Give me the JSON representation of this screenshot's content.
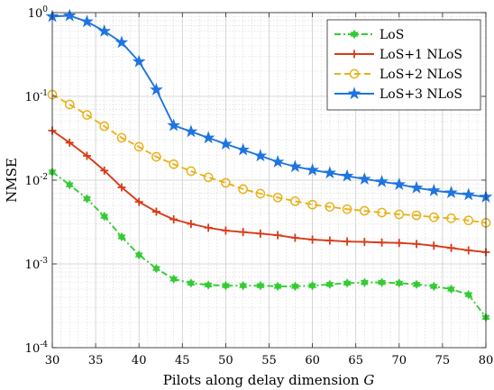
{
  "chart_data": {
    "type": "line",
    "xlabel": "Pilots along delay dimension",
    "xlabel_symbol": "G",
    "ylabel": "NMSE",
    "yscale": "log",
    "xlim": [
      30,
      80
    ],
    "ylim": [
      0.0001,
      1
    ],
    "grid": true,
    "minor_grid": true,
    "legend_position": "top-right",
    "x_ticks": [
      30,
      35,
      40,
      45,
      50,
      55,
      60,
      65,
      70,
      75,
      80
    ],
    "x_tick_labels": [
      "30",
      "35",
      "40",
      "45",
      "50",
      "55",
      "60",
      "65",
      "70",
      "75",
      "80"
    ],
    "y_ticks": [
      0.0001,
      0.001,
      0.01,
      0.1,
      1
    ],
    "y_tick_labels": [
      {
        "base": "10",
        "exp": "-4"
      },
      {
        "base": "10",
        "exp": "-3"
      },
      {
        "base": "10",
        "exp": "-2"
      },
      {
        "base": "10",
        "exp": "-1"
      },
      {
        "base": "10",
        "exp": "0"
      }
    ],
    "x": [
      30,
      32,
      34,
      36,
      38,
      40,
      42,
      44,
      46,
      48,
      50,
      52,
      54,
      56,
      58,
      60,
      62,
      64,
      66,
      68,
      70,
      72,
      74,
      76,
      78,
      80
    ],
    "series": [
      {
        "name": "LoS",
        "color": "#33cc33",
        "marker": "hexagram",
        "dash": "dashdot",
        "values": [
          0.0125,
          0.0088,
          0.006,
          0.0037,
          0.0021,
          0.00128,
          0.00088,
          0.00066,
          0.00059,
          0.00056,
          0.00055,
          0.00055,
          0.00055,
          0.00054,
          0.00054,
          0.00055,
          0.00057,
          0.00059,
          0.0006,
          0.0006,
          0.00059,
          0.00057,
          0.00054,
          0.0005,
          0.00043,
          0.00023
        ]
      },
      {
        "name": "LoS+1 NLoS",
        "color": "#d83a17",
        "marker": "plus",
        "dash": "solid",
        "values": [
          0.039,
          0.028,
          0.0195,
          0.013,
          0.0082,
          0.0055,
          0.0042,
          0.0034,
          0.003,
          0.0027,
          0.0025,
          0.0024,
          0.0023,
          0.0022,
          0.00205,
          0.00195,
          0.0019,
          0.00185,
          0.00183,
          0.0018,
          0.00178,
          0.00173,
          0.00165,
          0.00155,
          0.00145,
          0.00138
        ]
      },
      {
        "name": "LoS+2 NLoS",
        "color": "#e8b21a",
        "marker": "circle",
        "dash": "dashed",
        "values": [
          0.105,
          0.08,
          0.06,
          0.044,
          0.032,
          0.025,
          0.019,
          0.0155,
          0.0128,
          0.0108,
          0.0093,
          0.0078,
          0.0069,
          0.0062,
          0.0056,
          0.0051,
          0.0048,
          0.0045,
          0.0043,
          0.0041,
          0.0039,
          0.0038,
          0.0036,
          0.0035,
          0.0033,
          0.0031
        ]
      },
      {
        "name": "LoS+3 NLoS",
        "color": "#1f74e0",
        "marker": "pentagram",
        "dash": "solid",
        "values": [
          0.9,
          0.92,
          0.78,
          0.6,
          0.44,
          0.26,
          0.12,
          0.045,
          0.038,
          0.032,
          0.027,
          0.023,
          0.0195,
          0.0165,
          0.0145,
          0.0132,
          0.0122,
          0.0112,
          0.0103,
          0.0096,
          0.0089,
          0.0081,
          0.0075,
          0.0071,
          0.0067,
          0.0063
        ]
      }
    ]
  }
}
